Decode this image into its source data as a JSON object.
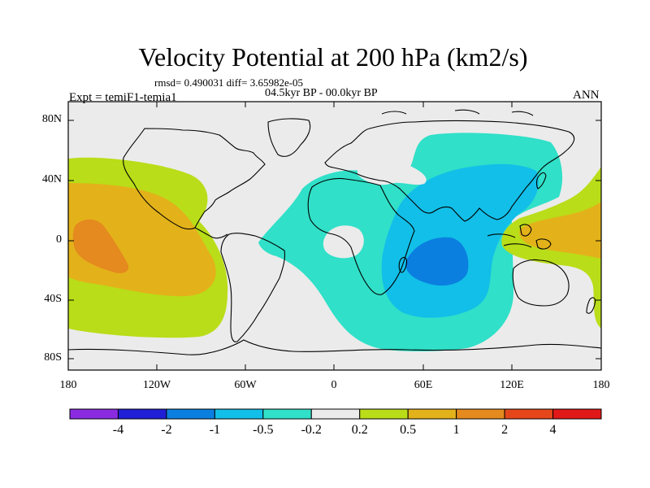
{
  "title": "Velocity Potential at 200 hPa (km2/s)",
  "stats_line": "rmsd= 0.490031 diff= 3.65982e-05",
  "period": "04.5kyr BP - 00.0kyr BP",
  "experiment": "Expt = temiF1-temia1",
  "season": "ANN",
  "y_axis_labels": [
    "80N",
    "40N",
    "0",
    "40S",
    "80S"
  ],
  "x_axis_labels": [
    "180",
    "120W",
    "60W",
    "0",
    "60E",
    "120E",
    "180"
  ],
  "colorbar": {
    "labels": [
      "-4",
      "-2",
      "-1",
      "-0.5",
      "-0.2",
      "0.2",
      "0.5",
      "1",
      "2",
      "4"
    ],
    "colors": [
      "#8a2be2",
      "#1f1fd6",
      "#0b7fe0",
      "#12bfe8",
      "#30e0c8",
      "#ebebeb",
      "#b9dd18",
      "#e3b21a",
      "#e58a1e",
      "#e5471a",
      "#e01818"
    ]
  },
  "field_colors": {
    "background": "#ebebeb",
    "neg_02_05": "#30e0c8",
    "neg_05_1": "#12bfe8",
    "neg_1_2": "#0b7fe0",
    "pos_02_05": "#b9dd18",
    "pos_05_1": "#e3b21a",
    "pos_1_2": "#e58a1e"
  }
}
